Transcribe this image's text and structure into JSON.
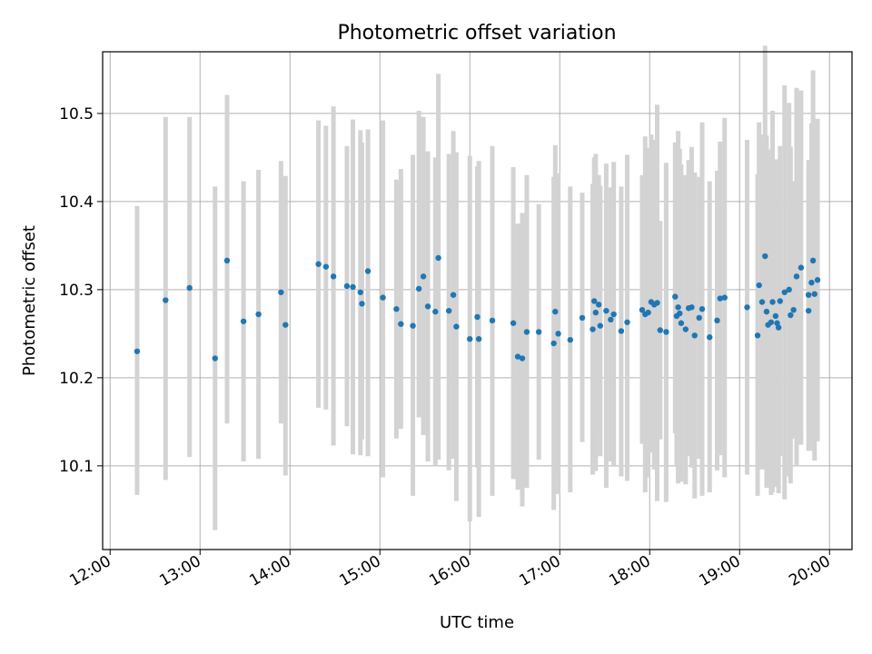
{
  "chart_data": {
    "type": "scatter",
    "title": "Photometric offset variation",
    "xlabel": "UTC time",
    "ylabel": "Photometric offset",
    "x_axis": "time (hours, UTC)",
    "xlim": [
      "11:55",
      "20:15"
    ],
    "ylim": [
      10.005,
      10.57
    ],
    "x_ticks": [
      "12:00",
      "13:00",
      "14:00",
      "15:00",
      "16:00",
      "17:00",
      "18:00",
      "19:00",
      "20:00"
    ],
    "y_ticks": [
      "10.1",
      "10.2",
      "10.3",
      "10.4",
      "10.5"
    ],
    "grid": true,
    "colors": {
      "points": "#1f77b4",
      "errorbars": "#d3d3d3",
      "grid": "#b0b0b0"
    },
    "series": [
      {
        "x": [
          "12:18",
          "12:37",
          "12:53",
          "13:10",
          "13:18",
          "13:29",
          "13:39",
          "13:54",
          "13:57",
          "14:19",
          "14:24",
          "14:29",
          "14:38",
          "14:42",
          "14:47",
          "14:48",
          "14:52",
          "15:02",
          "15:11",
          "15:14",
          "15:22",
          "15:26",
          "15:29",
          "15:32",
          "15:37",
          "15:39",
          "15:46",
          "15:49",
          "15:51",
          "16:00",
          "16:05",
          "16:06",
          "16:15",
          "16:29",
          "16:32",
          "16:35",
          "16:38",
          "16:46",
          "16:56",
          "16:57",
          "16:59",
          "17:07",
          "17:15",
          "17:22",
          "17:23",
          "17:24",
          "17:26",
          "17:27",
          "17:31",
          "17:34",
          "17:36",
          "17:41",
          "17:45",
          "17:55",
          "17:57",
          "17:59",
          "18:01",
          "18:03",
          "18:05",
          "18:07",
          "18:11",
          "18:17",
          "18:18",
          "18:19",
          "18:20",
          "18:21",
          "18:24",
          "18:26",
          "18:28",
          "18:30",
          "18:33",
          "18:35",
          "18:40",
          "18:45",
          "18:47",
          "18:50",
          "19:05",
          "19:12",
          "19:13",
          "19:15",
          "19:17",
          "19:18",
          "19:19",
          "19:21",
          "19:22",
          "19:24",
          "19:25",
          "19:26",
          "19:27",
          "19:30",
          "19:33",
          "19:34",
          "19:36",
          "19:38",
          "19:41",
          "19:46",
          "19:46",
          "19:48",
          "19:49",
          "19:50",
          "19:52"
        ],
        "y": [
          10.23,
          10.288,
          10.302,
          10.222,
          10.333,
          10.264,
          10.272,
          10.297,
          10.26,
          10.329,
          10.326,
          10.315,
          10.304,
          10.303,
          10.297,
          10.284,
          10.321,
          10.291,
          10.278,
          10.261,
          10.259,
          10.301,
          10.315,
          10.281,
          10.275,
          10.336,
          10.276,
          10.294,
          10.258,
          10.244,
          10.269,
          10.244,
          10.265,
          10.262,
          10.224,
          10.222,
          10.252,
          10.252,
          10.239,
          10.275,
          10.25,
          10.243,
          10.268,
          10.255,
          10.287,
          10.274,
          10.283,
          10.259,
          10.276,
          10.266,
          10.272,
          10.253,
          10.263,
          10.277,
          10.272,
          10.274,
          10.286,
          10.283,
          10.285,
          10.254,
          10.252,
          10.292,
          10.27,
          10.28,
          10.273,
          10.262,
          10.255,
          10.279,
          10.28,
          10.248,
          10.268,
          10.278,
          10.246,
          10.265,
          10.29,
          10.291,
          10.28,
          10.248,
          10.305,
          10.286,
          10.338,
          10.275,
          10.26,
          10.263,
          10.286,
          10.27,
          10.262,
          10.257,
          10.287,
          10.297,
          10.3,
          10.271,
          10.277,
          10.315,
          10.325,
          10.276,
          10.294,
          10.308,
          10.333,
          10.295,
          10.311
        ],
        "err_low": [
          10.067,
          10.084,
          10.11,
          10.027,
          10.148,
          10.105,
          10.108,
          10.148,
          10.089,
          10.166,
          10.164,
          10.123,
          10.145,
          10.113,
          10.112,
          10.13,
          10.111,
          10.087,
          10.131,
          10.142,
          10.066,
          10.155,
          10.135,
          10.105,
          10.101,
          10.107,
          10.095,
          10.108,
          10.06,
          10.037,
          10.098,
          10.042,
          10.066,
          10.085,
          10.073,
          10.054,
          10.075,
          10.107,
          10.05,
          10.087,
          10.068,
          10.07,
          10.127,
          10.09,
          10.125,
          10.094,
          10.137,
          10.111,
          10.075,
          10.105,
          10.099,
          10.088,
          10.083,
          10.125,
          10.07,
          10.087,
          10.115,
          10.096,
          10.06,
          10.13,
          10.059,
          10.137,
          10.101,
          10.08,
          10.088,
          10.082,
          10.079,
          10.111,
          10.098,
          10.063,
          10.108,
          10.066,
          10.07,
          10.095,
          10.112,
          10.087,
          10.09,
          10.066,
          10.12,
          10.096,
          10.099,
          10.075,
          10.094,
          10.067,
          10.07,
          10.093,
          10.076,
          10.069,
          10.111,
          10.062,
          10.088,
          10.08,
          10.131,
          10.101,
          10.124,
          10.117,
          10.141,
          10.127,
          10.117,
          10.106,
          10.128
        ],
        "err_high": [
          10.395,
          10.496,
          10.496,
          10.417,
          10.521,
          10.423,
          10.436,
          10.446,
          10.429,
          10.492,
          10.486,
          10.508,
          10.463,
          10.493,
          10.481,
          10.467,
          10.482,
          10.492,
          10.425,
          10.437,
          10.453,
          10.503,
          10.496,
          10.457,
          10.45,
          10.545,
          10.454,
          10.48,
          10.456,
          10.452,
          10.44,
          10.446,
          10.463,
          10.439,
          10.375,
          10.387,
          10.43,
          10.397,
          10.428,
          10.464,
          10.432,
          10.417,
          10.41,
          10.42,
          10.45,
          10.454,
          10.43,
          10.418,
          10.443,
          10.416,
          10.445,
          10.417,
          10.453,
          10.43,
          10.474,
          10.461,
          10.476,
          10.47,
          10.51,
          10.378,
          10.444,
          10.467,
          10.426,
          10.48,
          10.46,
          10.442,
          10.43,
          10.447,
          10.462,
          10.433,
          10.428,
          10.49,
          10.423,
          10.435,
          10.468,
          10.495,
          10.47,
          10.431,
          10.49,
          10.476,
          10.577,
          10.475,
          10.426,
          10.459,
          10.503,
          10.447,
          10.448,
          10.445,
          10.463,
          10.532,
          10.512,
          10.462,
          10.423,
          10.529,
          10.526,
          10.435,
          10.447,
          10.489,
          10.549,
          10.484,
          10.494
        ]
      }
    ]
  }
}
